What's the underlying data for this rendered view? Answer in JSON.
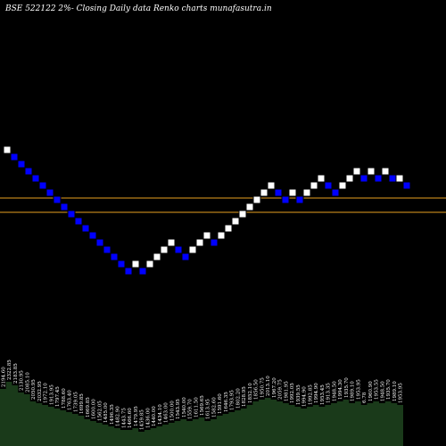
{
  "chart_data": {
    "type": "renko",
    "title": "BSE 522122  2%-  Closing Daily data  Renko  charts munafasutra.in",
    "brick_colors": {
      "up": "#ffffff",
      "down": "#0000ff"
    },
    "line_color": "#e8a020",
    "volume_color": "#1a3a1a",
    "y_units_note": "",
    "bricks": [
      {
        "dir": "up",
        "level": 7
      },
      {
        "dir": "down",
        "level": 6
      },
      {
        "dir": "down",
        "level": 5
      },
      {
        "dir": "down",
        "level": 4
      },
      {
        "dir": "down",
        "level": 3
      },
      {
        "dir": "down",
        "level": 2
      },
      {
        "dir": "down",
        "level": 1
      },
      {
        "dir": "down",
        "level": 0
      },
      {
        "dir": "down",
        "level": -1
      },
      {
        "dir": "down",
        "level": -2
      },
      {
        "dir": "down",
        "level": -3
      },
      {
        "dir": "down",
        "level": -4
      },
      {
        "dir": "down",
        "level": -5
      },
      {
        "dir": "down",
        "level": -6
      },
      {
        "dir": "down",
        "level": -7
      },
      {
        "dir": "down",
        "level": -8
      },
      {
        "dir": "down",
        "level": -9
      },
      {
        "dir": "down",
        "level": -10
      },
      {
        "dir": "up",
        "level": -9
      },
      {
        "dir": "down",
        "level": -10
      },
      {
        "dir": "up",
        "level": -9
      },
      {
        "dir": "up",
        "level": -8
      },
      {
        "dir": "up",
        "level": -7
      },
      {
        "dir": "up",
        "level": -6
      },
      {
        "dir": "down",
        "level": -7
      },
      {
        "dir": "down",
        "level": -8
      },
      {
        "dir": "up",
        "level": -7
      },
      {
        "dir": "up",
        "level": -6
      },
      {
        "dir": "up",
        "level": -5
      },
      {
        "dir": "down",
        "level": -6
      },
      {
        "dir": "up",
        "level": -5
      },
      {
        "dir": "up",
        "level": -4
      },
      {
        "dir": "up",
        "level": -3
      },
      {
        "dir": "up",
        "level": -2
      },
      {
        "dir": "up",
        "level": -1
      },
      {
        "dir": "up",
        "level": 0
      },
      {
        "dir": "up",
        "level": 1
      },
      {
        "dir": "up",
        "level": 2
      },
      {
        "dir": "down",
        "level": 1
      },
      {
        "dir": "down",
        "level": 0
      },
      {
        "dir": "up",
        "level": 1
      },
      {
        "dir": "down",
        "level": 0
      },
      {
        "dir": "up",
        "level": 1
      },
      {
        "dir": "up",
        "level": 2
      },
      {
        "dir": "up",
        "level": 3
      },
      {
        "dir": "down",
        "level": 2
      },
      {
        "dir": "down",
        "level": 1
      },
      {
        "dir": "up",
        "level": 2
      },
      {
        "dir": "up",
        "level": 3
      },
      {
        "dir": "up",
        "level": 4
      },
      {
        "dir": "down",
        "level": 3
      },
      {
        "dir": "up",
        "level": 4
      },
      {
        "dir": "down",
        "level": 3
      },
      {
        "dir": "up",
        "level": 4
      },
      {
        "dir": "down",
        "level": 3
      },
      {
        "dir": "up",
        "level": 3
      },
      {
        "dir": "down",
        "level": 2
      }
    ],
    "reference_levels": [
      1,
      -1
    ],
    "volume_labels": [
      "2194.60",
      "2322.85",
      "2183.85",
      "2130.95",
      "2085.10",
      "2050.95",
      "2032.95",
      "1972.10",
      "1913.95",
      "1797.45",
      "1788.60",
      "1763.40",
      "1739.05",
      "1699.85",
      "1669.85",
      "1600.00",
      "1562.05",
      "1485.00",
      "1496.35",
      "1482.90",
      "1443.75",
      "1466.60",
      "1479.95",
      "1459.85",
      "1436.00",
      "1440.00",
      "1434.10",
      "1463.00",
      "1500.00",
      "1543.95",
      "1540.00",
      "1559.70",
      "1611.50",
      "1569.65",
      "1613.95",
      "1582.60",
      "1591.60",
      "1646.35",
      "1793.95",
      "1802.20",
      "1828.95",
      "1852.10",
      "1856.50",
      "1950.75",
      "2013.10",
      "1967.20",
      "2059.75",
      "1981.95",
      "1992.05",
      "1939.55",
      "1994.90",
      "1992.85",
      "1994.90",
      "1953.45",
      "1913.35",
      "1948.50",
      "1994.30",
      "1935.70",
      "1989.10",
      "1953.95",
      "6.78",
      "1960.90",
      "1953.55",
      "1948.50",
      "1935.70",
      "1989.10",
      "1953.95"
    ],
    "volume_values": [
      64,
      72,
      68,
      60,
      58,
      50,
      48,
      46,
      44,
      42,
      40,
      38,
      36,
      34,
      30,
      28,
      26,
      24,
      22,
      20,
      18,
      18,
      20,
      16,
      18,
      20,
      22,
      24,
      26,
      28,
      30,
      28,
      30,
      32,
      28,
      30,
      34,
      36,
      38,
      40,
      42,
      46,
      50,
      52,
      54,
      52,
      50,
      48,
      46,
      44,
      42,
      44,
      46,
      44,
      46,
      48,
      50,
      52,
      48,
      50,
      46,
      48,
      50,
      48,
      50,
      48,
      46
    ],
    "volume_max": 80
  }
}
